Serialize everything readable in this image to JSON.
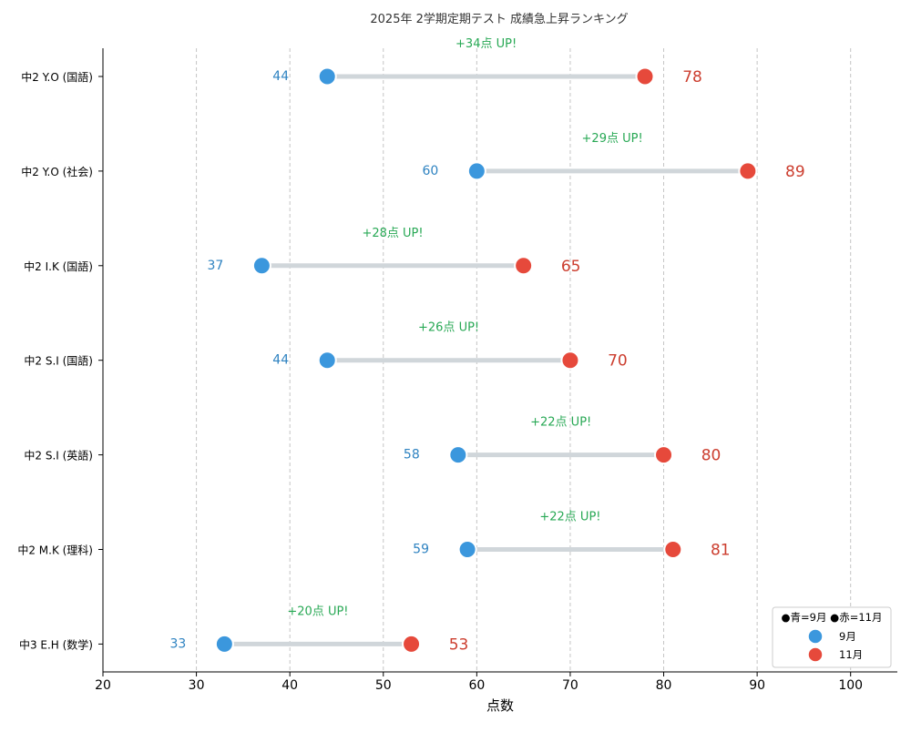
{
  "chart_data": {
    "type": "dumbbell",
    "title": "2025年 2学期定期テスト 成績急上昇ランキング",
    "xlabel": "点数",
    "ylabel": "",
    "xlim": [
      20,
      105
    ],
    "xticks": [
      20,
      30,
      40,
      50,
      60,
      70,
      80,
      90,
      100
    ],
    "grid": "x-dashed",
    "legend": {
      "title": "●青=9月 ●赤=11月",
      "position": "bottom-right",
      "entries": [
        {
          "label": "9月",
          "color": "#3b97dd"
        },
        {
          "label": "11月",
          "color": "#e6493b"
        }
      ]
    },
    "colors": {
      "before": "#3b97dd",
      "after": "#e6493b",
      "before_text": "#2f83c1",
      "after_text": "#cc3e2f",
      "gain_text": "#27a854",
      "connector": "#d0d6da"
    },
    "rows": [
      {
        "label": "中2 Y.O (国語)",
        "before": 44,
        "after": 78,
        "gain": "+34点 UP!"
      },
      {
        "label": "中2 Y.O (社会)",
        "before": 60,
        "after": 89,
        "gain": "+29点 UP!"
      },
      {
        "label": "中2 I.K (国語)",
        "before": 37,
        "after": 65,
        "gain": "+28点 UP!"
      },
      {
        "label": "中2 S.I (国語)",
        "before": 44,
        "after": 70,
        "gain": "+26点 UP!"
      },
      {
        "label": "中2 S.I (英語)",
        "before": 58,
        "after": 80,
        "gain": "+22点 UP!"
      },
      {
        "label": "中2 M.K (理科)",
        "before": 59,
        "after": 81,
        "gain": "+22点 UP!"
      },
      {
        "label": "中3 E.H (数学)",
        "before": 33,
        "after": 53,
        "gain": "+20点 UP!"
      }
    ]
  }
}
